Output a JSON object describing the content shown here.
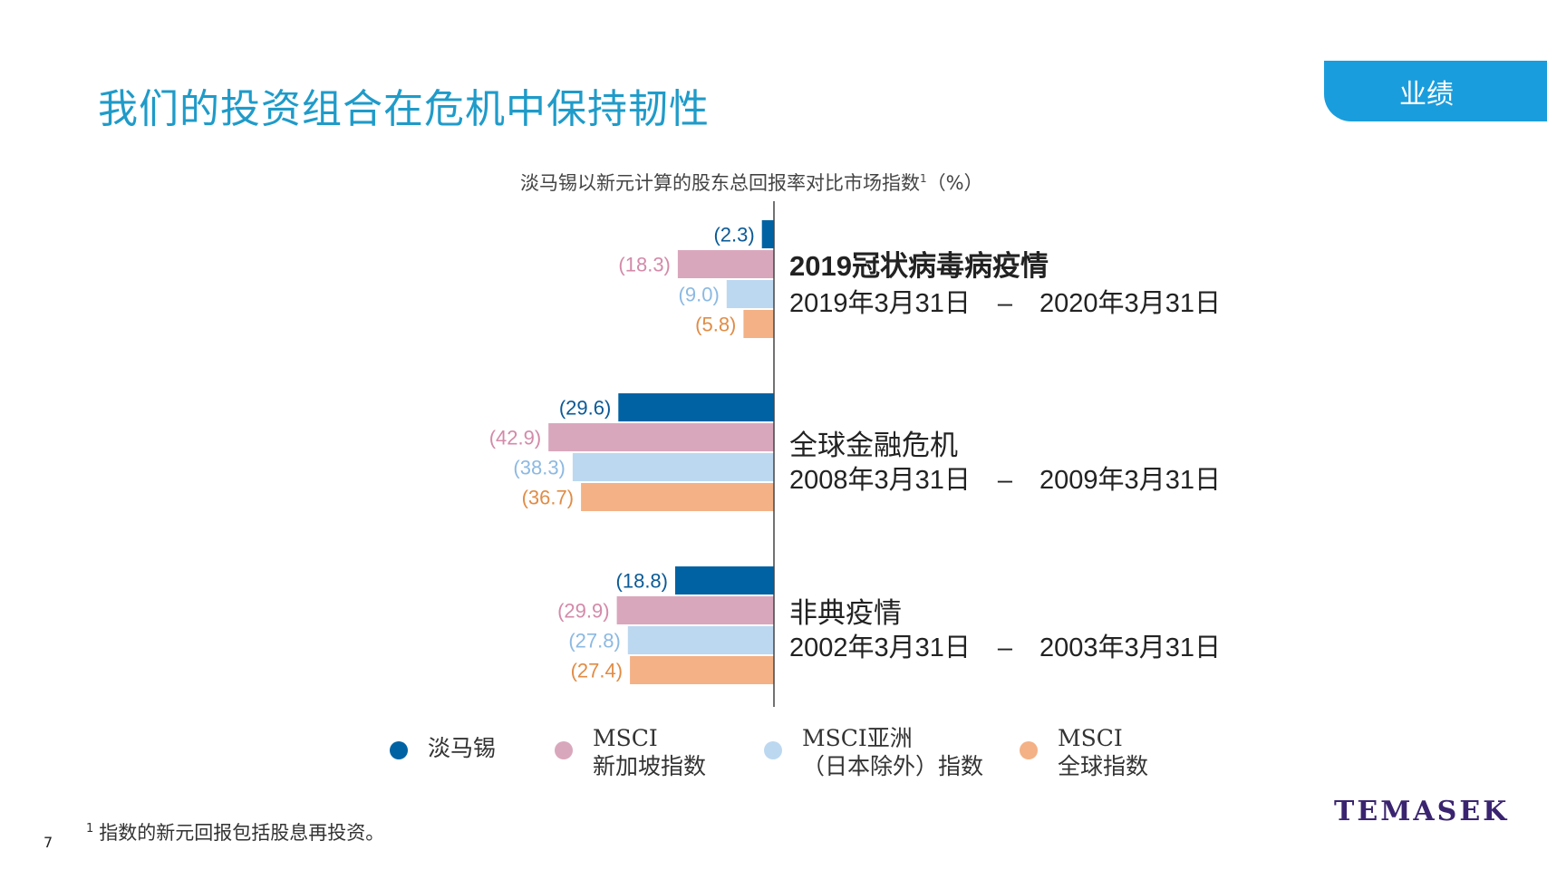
{
  "header": {
    "title": "我们的投资组合在危机中保持韧性",
    "section_tab": "业绩"
  },
  "chart_data": {
    "type": "bar",
    "orientation": "horizontal",
    "title": "淡马锡以新元计算的股东总回报率对比市场指数",
    "title_sup": "1",
    "title_unit": "（%）",
    "value_format": "parentheses-negative",
    "categories": [
      {
        "name": "2019冠状病毒病疫情",
        "bold": true,
        "start": "2019年3月31日",
        "dash": "–",
        "end": "2020年3月31日"
      },
      {
        "name": "全球金融危机",
        "bold": false,
        "start": "2008年3月31日",
        "dash": "–",
        "end": "2009年3月31日"
      },
      {
        "name": "非典疫情",
        "bold": false,
        "start": "2002年3月31日",
        "dash": "–",
        "end": "2003年3月31日"
      }
    ],
    "series": [
      {
        "name": "淡马锡",
        "color": "#0062a3",
        "label_color": "#0b5a96",
        "values": [
          -2.3,
          -29.6,
          -18.8
        ],
        "labels": [
          "(2.3)",
          "(29.6)",
          "(18.8)"
        ]
      },
      {
        "name": "MSCI 新加坡指数",
        "color": "#d9a7bc",
        "label_color": "#d38aa8",
        "values": [
          -18.3,
          -42.9,
          -29.9
        ],
        "labels": [
          "(18.3)",
          "(42.9)",
          "(29.9)"
        ]
      },
      {
        "name": "MSCI亚洲（日本除外）指数",
        "color": "#bcd8f0",
        "label_color": "#8cb9e2",
        "values": [
          -9.0,
          -38.3,
          -27.8
        ],
        "labels": [
          "(9.0)",
          "(38.3)",
          "(27.8)"
        ]
      },
      {
        "name": "MSCI 全球指数",
        "color": "#f3b185",
        "label_color": "#e08c46",
        "values": [
          -5.8,
          -36.7,
          -27.4
        ],
        "labels": [
          "(5.8)",
          "(36.7)",
          "(27.4)"
        ]
      }
    ],
    "legend": {
      "position": "bottom",
      "items": [
        {
          "line1": "淡马锡",
          "line2": "",
          "color": "#0062a3"
        },
        {
          "line1": "MSCI",
          "line2": "新加坡指数",
          "color": "#d9a7bc"
        },
        {
          "line1": "MSCI亚洲",
          "line2": "（日本除外）指数",
          "color": "#bcd8f0"
        },
        {
          "line1": "MSCI",
          "line2": "全球指数",
          "color": "#f3b185"
        }
      ]
    }
  },
  "footer": {
    "footnote_sup": "1",
    "footnote": "指数的新元回报包括股息再投资。",
    "page_number": "7",
    "logo": "TEMASEK"
  }
}
